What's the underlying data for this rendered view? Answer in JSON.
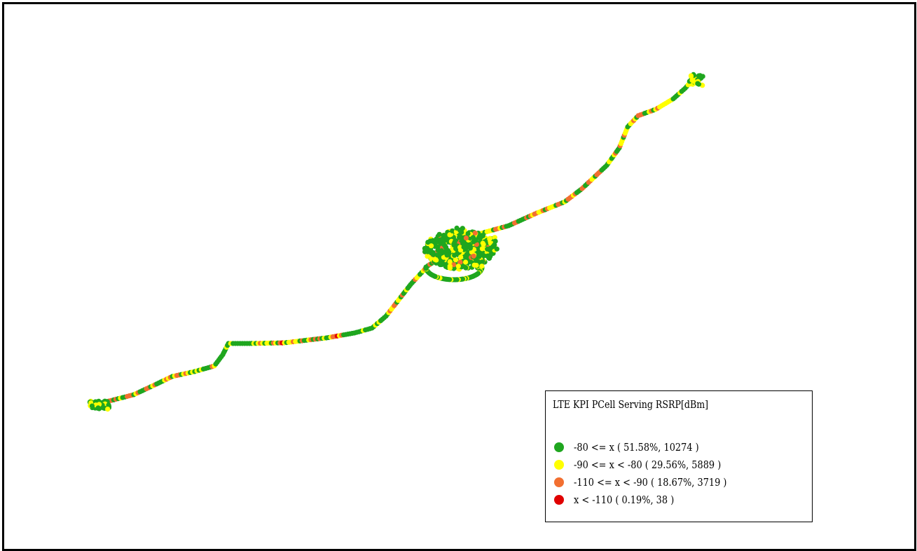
{
  "legend": {
    "title": "LTE KPI PCell Serving RSRP[dBm]",
    "items": [
      {
        "label": "-80 <= x ( 51.58%, 10274 )",
        "color": "#1fa61f",
        "icon": "green-dot-icon"
      },
      {
        "label": "-90 <= x < -80 ( 29.56%, 5889 )",
        "color": "#ffff00",
        "icon": "yellow-dot-icon"
      },
      {
        "label": "-110 <= x < -90 ( 18.67%, 3719 )",
        "color": "#f26f30",
        "icon": "orange-dot-icon"
      },
      {
        "label": "x < -110 ( 0.19%, 38 )",
        "color": "#e00000",
        "icon": "red-dot-icon"
      }
    ]
  }
}
